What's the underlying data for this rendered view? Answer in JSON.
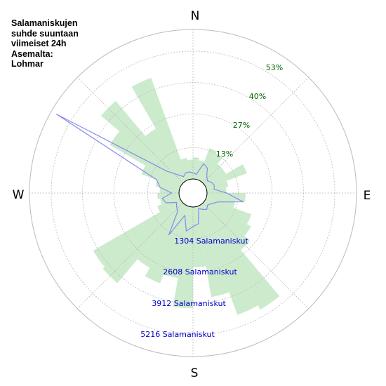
{
  "chart_data": {
    "type": "polar-rose",
    "title_lines": [
      "Salamaniskujen",
      "suhde suuntaan",
      "viimeiset 24h",
      "Asemalta:",
      "Lohmar"
    ],
    "directions": [
      "N",
      "E",
      "S",
      "W"
    ],
    "percent_ticks": [
      {
        "label": "13%",
        "value": 13
      },
      {
        "label": "27%",
        "value": 27
      },
      {
        "label": "40%",
        "value": 40
      },
      {
        "label": "53%",
        "value": 53
      }
    ],
    "count_ticks": [
      {
        "label": "1304 Salamaniskut",
        "value": 1304
      },
      {
        "label": "2608 Salamaniskut",
        "value": 2608
      },
      {
        "label": "3912 Salamaniskut",
        "value": 3912
      },
      {
        "label": "5216 Salamaniskut",
        "value": 5216
      }
    ],
    "percent_max": 62,
    "count_max": 6100,
    "sector_width_deg": 10,
    "percent_by_direction": {
      "centers_deg": [
        5,
        15,
        25,
        35,
        45,
        55,
        65,
        75,
        85,
        95,
        105,
        115,
        125,
        135,
        145,
        155,
        165,
        175,
        185,
        195,
        205,
        215,
        225,
        235,
        245,
        255,
        265,
        275,
        285,
        295,
        305,
        315,
        325,
        335,
        345,
        355
      ],
      "values": [
        9,
        8,
        14,
        13,
        10,
        10,
        18,
        9,
        8,
        16,
        12,
        20,
        22,
        25,
        50,
        48,
        38,
        25,
        42,
        30,
        34,
        30,
        43,
        42,
        10,
        8,
        9,
        8,
        10,
        17,
        34,
        44,
        25,
        45,
        9,
        8
      ]
    },
    "strikes_by_direction": {
      "angles_deg": [
        0,
        10,
        20,
        30,
        40,
        50,
        60,
        70,
        80,
        90,
        100,
        110,
        120,
        130,
        140,
        150,
        160,
        170,
        180,
        190,
        200,
        210,
        220,
        230,
        240,
        250,
        260,
        270,
        280,
        290,
        300,
        310,
        320,
        330,
        340,
        350
      ],
      "counts": [
        250,
        200,
        700,
        600,
        300,
        200,
        300,
        350,
        300,
        800,
        1500,
        500,
        300,
        200,
        300,
        200,
        100,
        700,
        800,
        1000,
        400,
        1400,
        400,
        300,
        200,
        600,
        700,
        300,
        800,
        1000,
        5850,
        800,
        400,
        200,
        300,
        300
      ]
    },
    "grid": true
  },
  "colors": {
    "rose_fill": "#ccebcc",
    "strike_line": "#8a8aec",
    "percent_text": "#006400",
    "count_text": "#0000cc",
    "grid": "#bbbbbb"
  }
}
